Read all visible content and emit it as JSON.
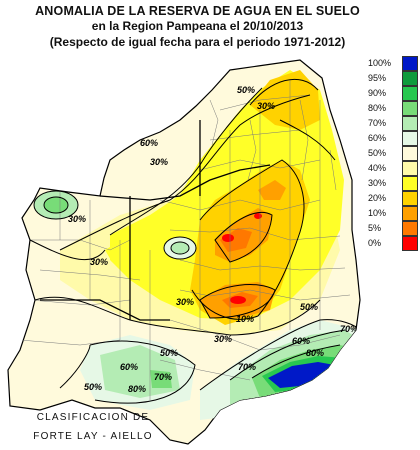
{
  "title": {
    "line1": "ANOMALIA DE LA RESERVA DE AGUA EN EL SUELO",
    "line2": "en la Region Pampeana el   20/10/2013",
    "line3": "(Respecto de igual fecha para el periodo 1971-2012)"
  },
  "legend": {
    "items": [
      {
        "label": "100%",
        "color": "#0019c8"
      },
      {
        "label": "95%",
        "color": "#0f9b3c"
      },
      {
        "label": "90%",
        "color": "#28c850"
      },
      {
        "label": "80%",
        "color": "#78dc78"
      },
      {
        "label": "70%",
        "color": "#b4ecb4"
      },
      {
        "label": "60%",
        "color": "#e6f8e6"
      },
      {
        "label": "50%",
        "color": "#fffadc"
      },
      {
        "label": "40%",
        "color": "#fffaaa"
      },
      {
        "label": "30%",
        "color": "#ffff28"
      },
      {
        "label": "20%",
        "color": "#ffd200"
      },
      {
        "label": "10%",
        "color": "#ffa000"
      },
      {
        "label": "5%",
        "color": "#ff7800"
      },
      {
        "label": "0%",
        "color": "#ff0000"
      }
    ]
  },
  "isolines": {
    "l50a": "50%",
    "l30a": "30%",
    "l60a": "60%",
    "l30b": "30%",
    "l30c": "30%",
    "l30d": "30%",
    "l10a": "10%",
    "l30e": "30%",
    "l50b": "50%",
    "l30f": "30%",
    "l60b": "60%",
    "l70a": "70%",
    "l60c": "60%",
    "l70b": "70%",
    "l80a": "80%",
    "l50c": "50%",
    "l70c": "70%",
    "l80b": "80%",
    "l50d": "50%"
  },
  "credit": {
    "line1": "CLASIFICACION DE",
    "line2": "FORTE LAY - AIELLO"
  }
}
